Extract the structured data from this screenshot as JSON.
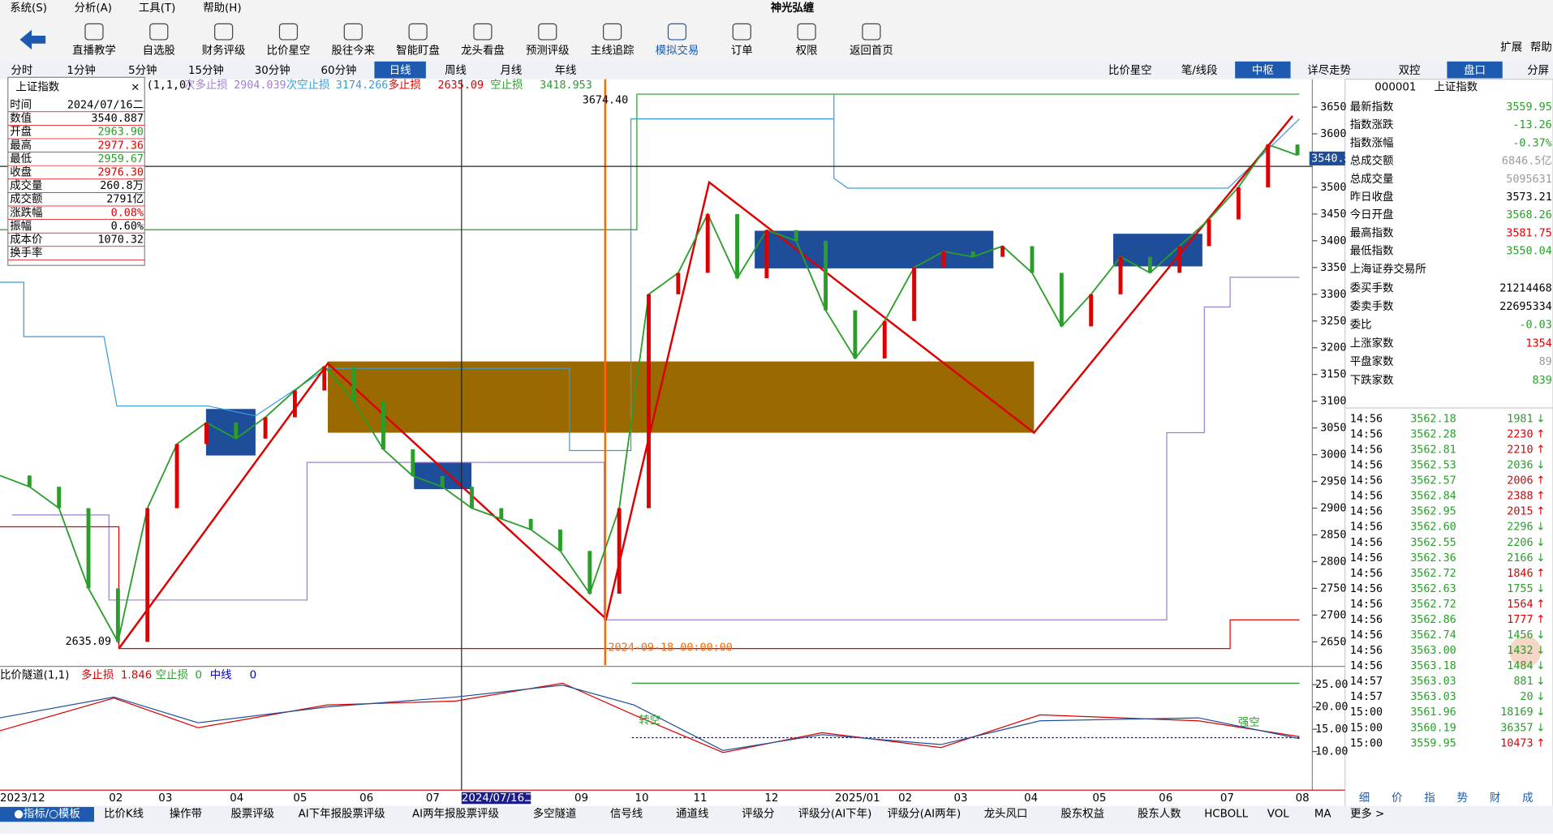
{
  "menu": [
    "系统(S)",
    "分析(A)",
    "工具(T)",
    "帮助(H)"
  ],
  "app_title": "神光弘缠",
  "toolbar": [
    "直播教学",
    "自选股",
    "财务评级",
    "比价星空",
    "股往今来",
    "智能盯盘",
    "龙头看盘",
    "预测评级",
    "主线追踪",
    "模拟交易",
    "订单",
    "权限",
    "返回首页"
  ],
  "toolbar_right": [
    "扩展",
    "帮助"
  ],
  "periods": [
    "分时",
    "1分钟",
    "5分钟",
    "15分钟",
    "30分钟",
    "60分钟",
    "日线",
    "周线",
    "月线",
    "年线"
  ],
  "active_period": 6,
  "right_tabs": [
    "比价星空",
    "笔/线段",
    "中枢",
    "详尽走势",
    "双控",
    "盘口",
    "分屏"
  ],
  "active_right_tabs": [
    2,
    5
  ],
  "legend": {
    "prefix": "(1,1,0)",
    "items": [
      {
        "label": "次多止损",
        "value": 2904.039
      },
      {
        "label": "次空止损",
        "value": 3174.266
      },
      {
        "label": "多止损",
        "value": 2635.09
      },
      {
        "label": "空止损",
        "value": 3418.953
      }
    ]
  },
  "info_box": {
    "title": "上证指数",
    "rows": [
      [
        "时间",
        "2024/07/16二"
      ],
      [
        "数值",
        "3540.887"
      ],
      [
        "开盘",
        "2963.90"
      ],
      [
        "最高",
        "2977.36"
      ],
      [
        "最低",
        "2959.67"
      ],
      [
        "收盘",
        "2976.30"
      ],
      [
        "成交量",
        "260.8万"
      ],
      [
        "成交额",
        "2791亿"
      ],
      [
        "涨跌幅",
        "0.08%"
      ],
      [
        "振幅",
        "0.60%"
      ],
      [
        "成本价",
        "1070.32"
      ],
      [
        "换手率",
        ""
      ]
    ]
  },
  "price_chart": {
    "type": "line",
    "ylim": [
      2606,
      3702
    ],
    "yticks": [
      3650,
      3600,
      3550,
      3500,
      3450,
      3400,
      3350,
      3300,
      3250,
      3200,
      3150,
      3100,
      3050,
      3000,
      2950,
      2900,
      2850,
      2800,
      2750,
      2700,
      2650
    ],
    "current_price": "3540.8",
    "closes": [
      2961,
      2940,
      2900,
      2750,
      2650,
      2900,
      3020,
      3060,
      3030,
      3070,
      3120,
      3165,
      3100,
      3010,
      2960,
      2940,
      2900,
      2880,
      2860,
      2820,
      2740,
      2900,
      3300,
      3340,
      3450,
      3330,
      3420,
      3400,
      3270,
      3180,
      3250,
      3350,
      3380,
      3370,
      3390,
      3340,
      3240,
      3300,
      3370,
      3340,
      3390,
      3440,
      3500,
      3580,
      3560
    ],
    "annotations": [
      "3674.40",
      "2635.09",
      "2024-09-18 00:00:00"
    ],
    "x_labels": [
      "2023/12",
      "02",
      "03",
      "04",
      "05",
      "06",
      "07",
      "2024/07/16二",
      "09",
      "10",
      "11",
      "12",
      "2025/01",
      "02",
      "03",
      "04",
      "05",
      "06",
      "07",
      "08"
    ]
  },
  "indicator": {
    "title": "比价隧道(1,1)",
    "items": [
      {
        "label": "多止损",
        "value": 1.846
      },
      {
        "label": "空止损",
        "value": 0
      },
      {
        "label": "中线",
        "value": 0
      }
    ],
    "ylim": [
      2,
      28
    ],
    "yticks": [
      {
        "value": 25,
        "label": "25.00"
      },
      {
        "value": 20,
        "label": "20.00"
      },
      {
        "value": 15,
        "label": "15.00"
      },
      {
        "value": 10,
        "label": "10.00"
      }
    ],
    "annotations": [
      "转空",
      "强空"
    ]
  },
  "quote": {
    "code": "000001",
    "name": "上证指数",
    "rows": [
      [
        "最新指数",
        "3559.95"
      ],
      [
        "指数涨跌",
        "-13.26"
      ],
      [
        "指数涨幅",
        "-0.37%"
      ],
      [
        "总成交额",
        "6846.5亿"
      ],
      [
        "总成交量",
        "5095631"
      ],
      [
        "昨日收盘",
        "3573.21"
      ],
      [
        "今日开盘",
        "3568.26"
      ],
      [
        "最高指数",
        "3581.75"
      ],
      [
        "最低指数",
        "3550.04"
      ]
    ],
    "exchange": "上海证券交易所",
    "rows2": [
      [
        "委买手数",
        "21214468"
      ],
      [
        "委卖手数",
        "22695334"
      ],
      [
        "委比",
        "-0.03"
      ],
      [
        "上涨家数",
        "1354"
      ],
      [
        "平盘家数",
        "89"
      ],
      [
        "下跌家数",
        "839"
      ]
    ]
  },
  "trades": [
    [
      "14:56",
      "3562.18",
      "1981",
      "↓"
    ],
    [
      "14:56",
      "3562.28",
      "2230",
      "↑"
    ],
    [
      "14:56",
      "3562.81",
      "2210",
      "↑"
    ],
    [
      "14:56",
      "3562.53",
      "2036",
      "↓"
    ],
    [
      "14:56",
      "3562.57",
      "2006",
      "↑"
    ],
    [
      "14:56",
      "3562.84",
      "2388",
      "↑"
    ],
    [
      "14:56",
      "3562.95",
      "2015",
      "↑"
    ],
    [
      "14:56",
      "3562.60",
      "2296",
      "↓"
    ],
    [
      "14:56",
      "3562.55",
      "2206",
      "↓"
    ],
    [
      "14:56",
      "3562.36",
      "2166",
      "↓"
    ],
    [
      "14:56",
      "3562.72",
      "1846",
      "↑"
    ],
    [
      "14:56",
      "3562.63",
      "1755",
      "↓"
    ],
    [
      "14:56",
      "3562.72",
      "1564",
      "↑"
    ],
    [
      "14:56",
      "3562.86",
      "1777",
      "↑"
    ],
    [
      "14:56",
      "3562.74",
      "1456",
      "↓"
    ],
    [
      "14:56",
      "3563.00",
      "1432",
      "↓"
    ],
    [
      "14:56",
      "3563.18",
      "1484",
      "↓"
    ],
    [
      "14:57",
      "3563.03",
      "881",
      "↓"
    ],
    [
      "14:57",
      "3563.03",
      "20",
      "↓"
    ],
    [
      "15:00",
      "3561.96",
      "18169",
      "↓"
    ],
    [
      "15:00",
      "3560.19",
      "36357",
      "↓"
    ],
    [
      "15:00",
      "3559.95",
      "10473",
      "↑"
    ]
  ],
  "bottom_tabs": [
    "●指标/○模板",
    "比价K线",
    "操作带",
    "股票评级",
    "AI下年报股票评级",
    "AI两年报股票评级",
    "多空隧道",
    "信号线",
    "通道线",
    "评级分",
    "评级分(AI下年)",
    "评级分(AI两年)",
    "龙头风口",
    "股东权益",
    "股东人数",
    "HCBOLL",
    "VOL",
    "MA",
    "更多 >"
  ],
  "corner_tabs": [
    "细",
    "价",
    "指",
    "势",
    "财",
    "成"
  ]
}
